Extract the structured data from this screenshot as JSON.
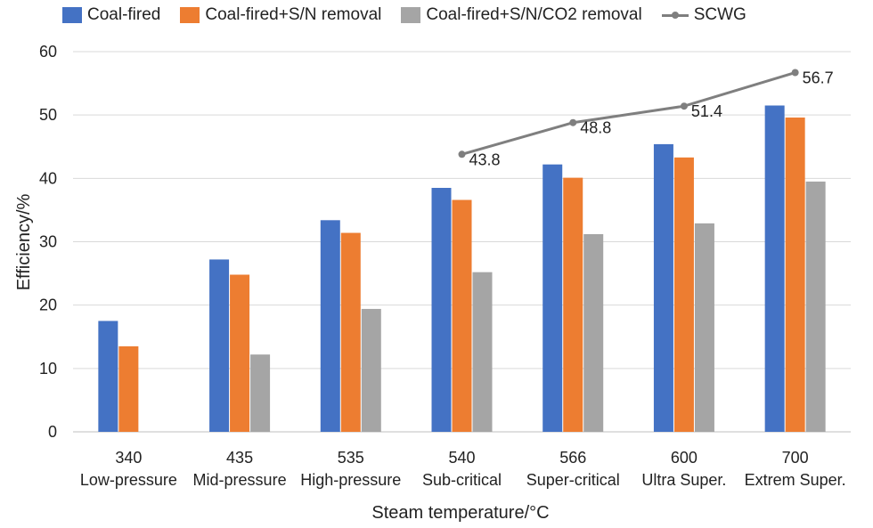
{
  "chart_data": {
    "type": "bar",
    "xlabel": "Steam temperature/°C",
    "ylabel": "Efficiency/%",
    "ylim": [
      0,
      60
    ],
    "yticks": [
      0,
      10,
      20,
      30,
      40,
      50,
      60
    ],
    "grid": true,
    "legend_position": "top",
    "categories": [
      {
        "temp": "340",
        "name": "Low-pressure"
      },
      {
        "temp": "435",
        "name": "Mid-pressure"
      },
      {
        "temp": "535",
        "name": "High-pressure"
      },
      {
        "temp": "540",
        "name": "Sub-critical"
      },
      {
        "temp": "566",
        "name": "Super-critical"
      },
      {
        "temp": "600",
        "name": "Ultra Super."
      },
      {
        "temp": "700",
        "name": "Extrem Super."
      }
    ],
    "series": [
      {
        "name": "Coal-fired",
        "kind": "bar",
        "color": "#4472C4",
        "values": [
          17.5,
          27.2,
          33.4,
          38.5,
          42.2,
          45.4,
          51.5
        ]
      },
      {
        "name": "Coal-fired+S/N removal",
        "kind": "bar",
        "color": "#ED7D31",
        "values": [
          13.5,
          24.8,
          31.4,
          36.6,
          40.1,
          43.3,
          49.6
        ]
      },
      {
        "name": "Coal-fired+S/N/CO2 removal",
        "kind": "bar",
        "color": "#A5A5A5",
        "values": [
          null,
          12.2,
          19.4,
          25.2,
          31.2,
          32.9,
          39.5
        ]
      },
      {
        "name": "SCWG",
        "kind": "line",
        "color": "#7F7F7F",
        "values": [
          null,
          null,
          null,
          43.8,
          48.8,
          51.4,
          56.7
        ],
        "labels": [
          "",
          "",
          "",
          "43.8",
          "48.8",
          "51.4",
          "56.7"
        ]
      }
    ]
  }
}
